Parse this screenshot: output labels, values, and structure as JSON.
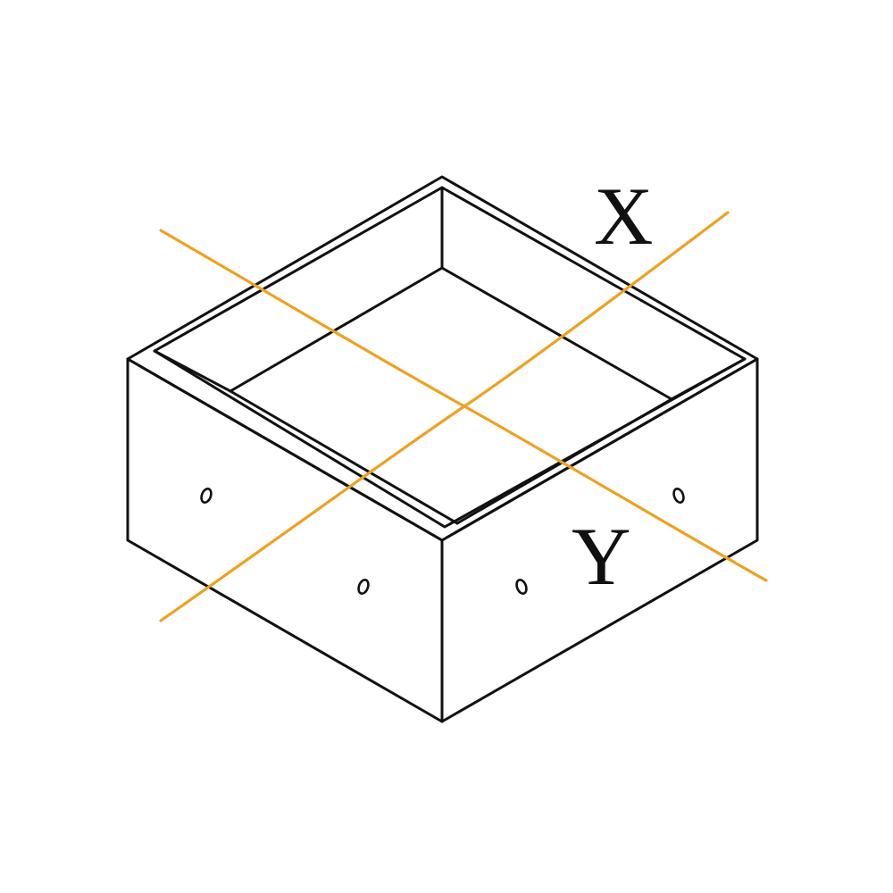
{
  "labels": {
    "x_axis": "X",
    "y_axis": "Y"
  },
  "colors": {
    "outline": "#111111",
    "axis_lines": "#f0a020",
    "fill": "#ffffff"
  }
}
